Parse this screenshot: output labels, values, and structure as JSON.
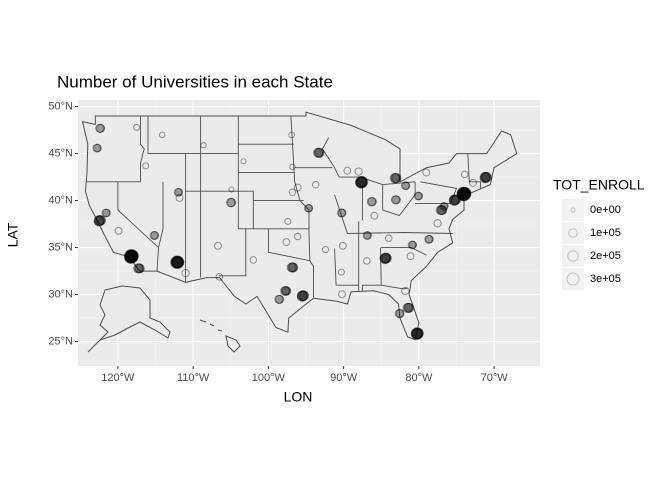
{
  "chart_data": {
    "type": "scatter",
    "title": "Number of Universities in each State",
    "x_label": "LON",
    "y_label": "LAT",
    "xlim": [
      -125.3,
      -63.9
    ],
    "ylim": [
      22.4,
      50.7
    ],
    "xticks": [
      {
        "value": -120,
        "label": "120°W"
      },
      {
        "value": -110,
        "label": "110°W"
      },
      {
        "value": -100,
        "label": "100°W"
      },
      {
        "value": -90,
        "label": "90°W"
      },
      {
        "value": -80,
        "label": "80°W"
      },
      {
        "value": -70,
        "label": "70°W"
      }
    ],
    "yticks": [
      {
        "value": 25,
        "label": "25°N"
      },
      {
        "value": 30,
        "label": "30°N"
      },
      {
        "value": 35,
        "label": "35°N"
      },
      {
        "value": 40,
        "label": "40°N"
      },
      {
        "value": 45,
        "label": "45°N"
      },
      {
        "value": 50,
        "label": "50°N"
      }
    ],
    "grid": true,
    "size_legend": {
      "title": "TOT_ENROLL",
      "breaks": [
        {
          "value": 0,
          "label": "0e+00"
        },
        {
          "value": 100000,
          "label": "1e+05"
        },
        {
          "value": 200000,
          "label": "2e+05"
        },
        {
          "value": 300000,
          "label": "3e+05"
        }
      ]
    },
    "x": [
      -122.3,
      -122.7,
      -122.4,
      -118.2,
      -117.2,
      -121.5,
      -112.1,
      -110.9,
      -111.9,
      -111.7,
      -104.9,
      -106.6,
      -115.1,
      -116.2,
      -96.8,
      -95.4,
      -97.7,
      -98.5,
      -97.5,
      -94.6,
      -93.3,
      -87.6,
      -83.1,
      -83,
      -86.2,
      -90.2,
      -86.8,
      -84.4,
      -80.2,
      -81.4,
      -82.5,
      -74,
      -75.2,
      -71.1,
      -77,
      -76.6,
      -80,
      -81.7,
      -87.9,
      -89.4,
      -80.8,
      -78.6,
      -90.1,
      -90,
      -96,
      -93.6,
      -85.8,
      -77.4,
      -96.7,
      -97.3,
      -96,
      -92.3,
      -90.2,
      -86.8,
      -83.9,
      -78.9,
      -73.8,
      -72.7,
      -117.4,
      -114,
      -108.5,
      -96.8,
      -96.7,
      -103.2,
      -104.8,
      -81.7,
      -81,
      -101.9,
      -106.4,
      -119.8
    ],
    "y": [
      47.6,
      45.5,
      37.8,
      34.05,
      32.7,
      38.6,
      33.4,
      32.2,
      40.8,
      40.2,
      39.7,
      35.1,
      36.2,
      43.6,
      32.8,
      29.8,
      30.3,
      29.4,
      35.5,
      39.1,
      45,
      41.9,
      42.3,
      40,
      39.8,
      38.6,
      36.2,
      33.8,
      25.8,
      28.5,
      27.9,
      40.7,
      40,
      42.4,
      38.9,
      39.3,
      40.4,
      41.5,
      43,
      43.1,
      35.2,
      35.8,
      29.95,
      35.1,
      41.3,
      41.6,
      38.3,
      37.5,
      40.8,
      37.7,
      36.1,
      34.7,
      32.3,
      33.5,
      35.9,
      42.9,
      42.7,
      41.8,
      47.7,
      46.9,
      45.8,
      46.9,
      43.5,
      44.1,
      41.1,
      30.3,
      34,
      33.6,
      31.8,
      36.7
    ],
    "size": [
      80000,
      60000,
      150000,
      300000,
      120000,
      60000,
      250000,
      50000,
      60000,
      40000,
      90000,
      40000,
      70000,
      20000,
      120000,
      150000,
      100000,
      80000,
      40000,
      60000,
      120000,
      200000,
      130000,
      80000,
      90000,
      70000,
      60000,
      150000,
      200000,
      120000,
      80000,
      300000,
      150000,
      150000,
      120000,
      60000,
      60000,
      60000,
      50000,
      40000,
      60000,
      70000,
      40000,
      40000,
      40000,
      30000,
      40000,
      50000,
      30000,
      20000,
      30000,
      20000,
      20000,
      30000,
      30000,
      40000,
      30000,
      40000,
      20000,
      10000,
      8000,
      15000,
      10000,
      5000,
      5000,
      50000,
      40000,
      30000,
      30000,
      40000
    ]
  }
}
